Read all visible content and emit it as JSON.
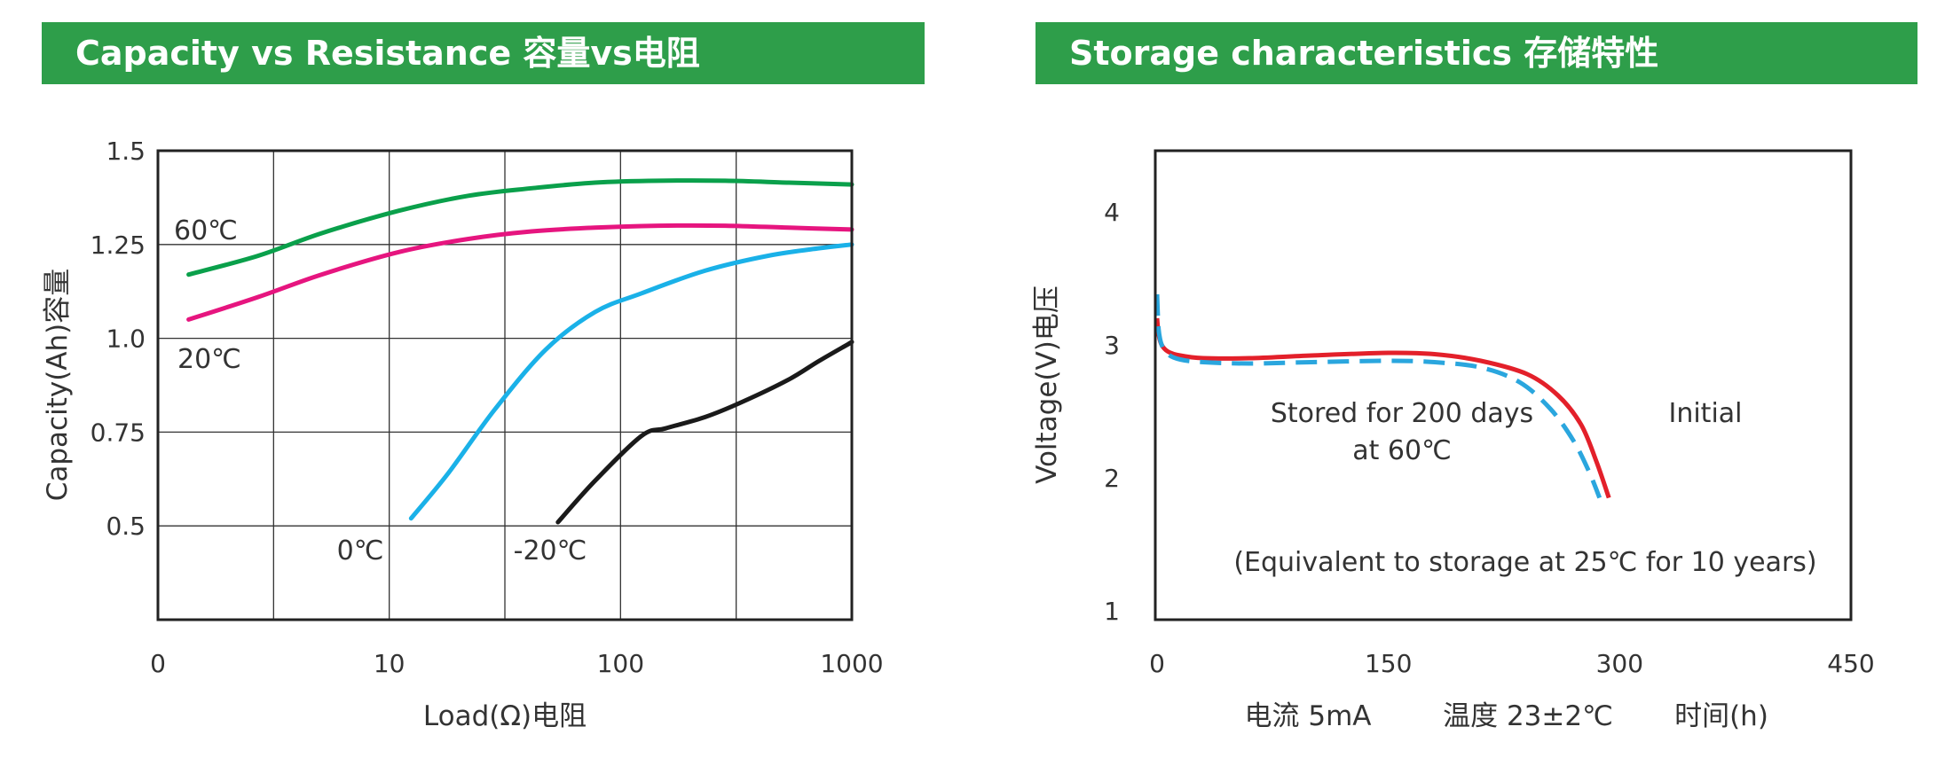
{
  "charts": {
    "left": {
      "banner": "Capacity vs Resistance  容量vs电阻"
    },
    "right": {
      "banner": "Storage characteristics  存储特性",
      "footer": {
        "current": "电流 5mA",
        "temperature": "温度 23±2℃"
      }
    }
  },
  "chart_data": [
    {
      "type": "line",
      "title": "Capacity vs Resistance  容量vs电阻",
      "xlabel": "Load(Ω)电阻",
      "ylabel": "Capacity(Ah)容量",
      "x_scale": "log",
      "x_tick_labels": [
        "0",
        "10",
        "100",
        "1000"
      ],
      "xlim": [
        0.5,
        1000
      ],
      "y_ticks": [
        0.5,
        0.75,
        1.0,
        1.25,
        1.5
      ],
      "y_tick_labels": [
        "0.5",
        "0.75",
        "1.0",
        "1.25",
        "1.5"
      ],
      "ylim": [
        0.25,
        1.5
      ],
      "grid": true,
      "series": [
        {
          "name": "60℃",
          "color": "#0aa04b",
          "x": [
            0.7,
            1.5,
            3,
            7,
            15,
            30,
            60,
            120,
            250,
            500,
            1000
          ],
          "y": [
            1.17,
            1.22,
            1.28,
            1.34,
            1.38,
            1.4,
            1.415,
            1.42,
            1.42,
            1.415,
            1.41
          ]
        },
        {
          "name": "20℃",
          "color": "#e6157f",
          "x": [
            0.7,
            1.5,
            3,
            7,
            15,
            30,
            60,
            120,
            250,
            500,
            1000
          ],
          "y": [
            1.05,
            1.11,
            1.17,
            1.23,
            1.265,
            1.285,
            1.295,
            1.3,
            1.3,
            1.295,
            1.29
          ]
        },
        {
          "name": "0℃",
          "color": "#1ab1e8",
          "x": [
            8,
            12,
            20,
            35,
            60,
            100,
            200,
            400,
            700,
            1000
          ],
          "y": [
            0.52,
            0.64,
            0.81,
            0.97,
            1.07,
            1.12,
            1.18,
            1.22,
            1.24,
            1.25
          ]
        },
        {
          "name": "-20℃",
          "color": "#1a1a1a",
          "x": [
            40,
            60,
            100,
            130,
            200,
            300,
            500,
            700,
            1000
          ],
          "y": [
            0.51,
            0.62,
            0.74,
            0.76,
            0.79,
            0.83,
            0.89,
            0.94,
            0.99
          ]
        }
      ]
    },
    {
      "type": "line",
      "title": "Storage characteristics  存储特性",
      "xlabel": "时间(h)",
      "ylabel": "Voltage(V)电压",
      "x_ticks": [
        0,
        150,
        300,
        450
      ],
      "xlim": [
        0,
        450
      ],
      "y_ticks": [
        1,
        2,
        3,
        4
      ],
      "ylim": [
        1,
        4
      ],
      "grid": false,
      "annotations": [
        "Stored for 200 days",
        "at 60℃",
        "Initial",
        "(Equivalent to storage at 25℃ for 10 years)"
      ],
      "series": [
        {
          "name": "Initial",
          "color": "#e3202a",
          "style": "solid",
          "x": [
            0,
            1,
            3,
            7,
            15,
            30,
            60,
            100,
            150,
            180,
            210,
            240,
            260,
            275,
            285,
            293
          ],
          "y": [
            3.2,
            3.08,
            3.0,
            2.95,
            2.92,
            2.9,
            2.9,
            2.92,
            2.94,
            2.93,
            2.88,
            2.78,
            2.62,
            2.4,
            2.12,
            1.85
          ]
        },
        {
          "name": "Stored for 200 days at 60℃",
          "color": "#2aa6de",
          "style": "dashed",
          "x": [
            0,
            1,
            3,
            7,
            15,
            30,
            60,
            100,
            150,
            180,
            210,
            235,
            255,
            270,
            280,
            287
          ],
          "y": [
            3.38,
            3.12,
            3.0,
            2.93,
            2.89,
            2.87,
            2.86,
            2.87,
            2.88,
            2.87,
            2.83,
            2.72,
            2.52,
            2.28,
            2.05,
            1.85
          ]
        }
      ]
    }
  ]
}
